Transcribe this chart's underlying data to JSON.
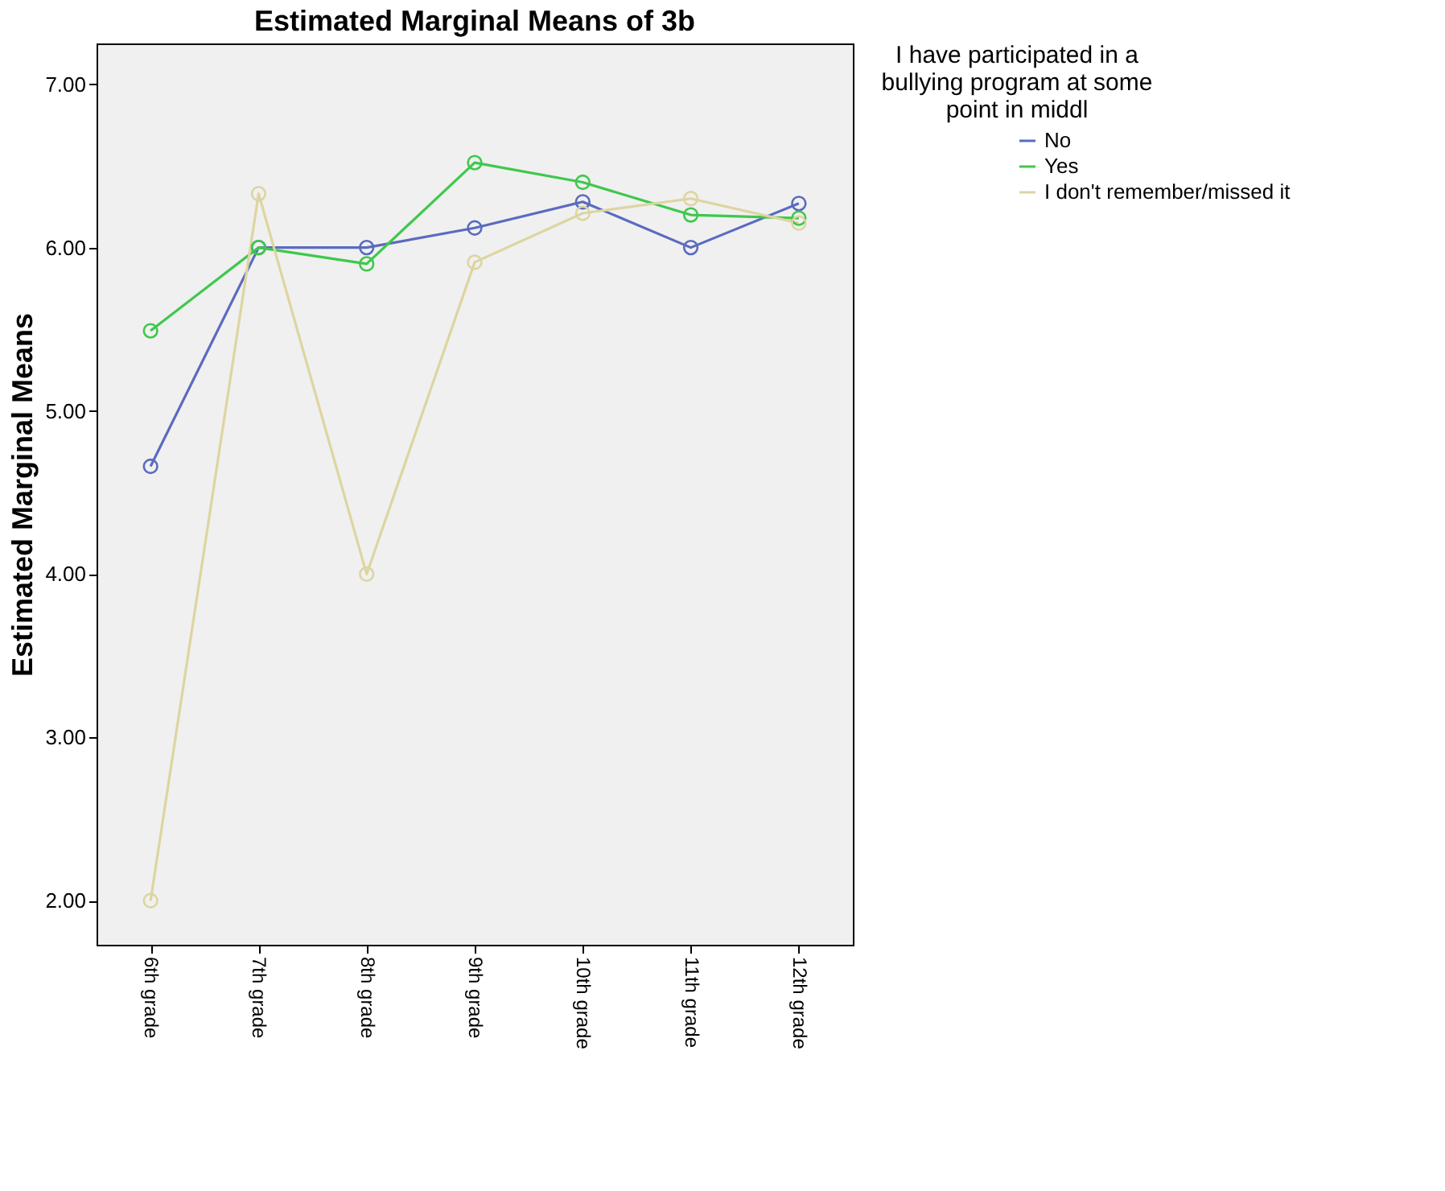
{
  "chart_data": {
    "type": "line",
    "title": "Estimated Marginal Means of 3b",
    "ylabel": "Estimated Marginal Means",
    "legend_title": "I have participated in a bullying program at some point in middl",
    "legend": "top right",
    "marker": "circle",
    "line_style": "solid",
    "grid": false,
    "categories": [
      "6th grade",
      "7th grade",
      "8th grade",
      "9th grade",
      "10th grade",
      "11th grade",
      "12th grade"
    ],
    "ylim": [
      1.73,
      7.25
    ],
    "yticks": [
      {
        "value": 2,
        "label": "2.00"
      },
      {
        "value": 3,
        "label": "3.00"
      },
      {
        "value": 4,
        "label": "4.00"
      },
      {
        "value": 5,
        "label": "5.00"
      },
      {
        "value": 6,
        "label": "6.00"
      },
      {
        "value": 7,
        "label": "7.00"
      }
    ],
    "series": [
      {
        "name": "No",
        "color": "#5a6bbf",
        "values": [
          4.66,
          6.0,
          6.0,
          6.12,
          6.28,
          6.0,
          6.27
        ]
      },
      {
        "name": "Yes",
        "color": "#3ec84c",
        "values": [
          5.49,
          6.0,
          5.9,
          6.52,
          6.4,
          6.2,
          6.18
        ]
      },
      {
        "name": "I don't remember/missed it",
        "color": "#ddd5a0",
        "values": [
          2.0,
          6.33,
          4.0,
          5.91,
          6.21,
          6.3,
          6.15
        ]
      }
    ]
  }
}
